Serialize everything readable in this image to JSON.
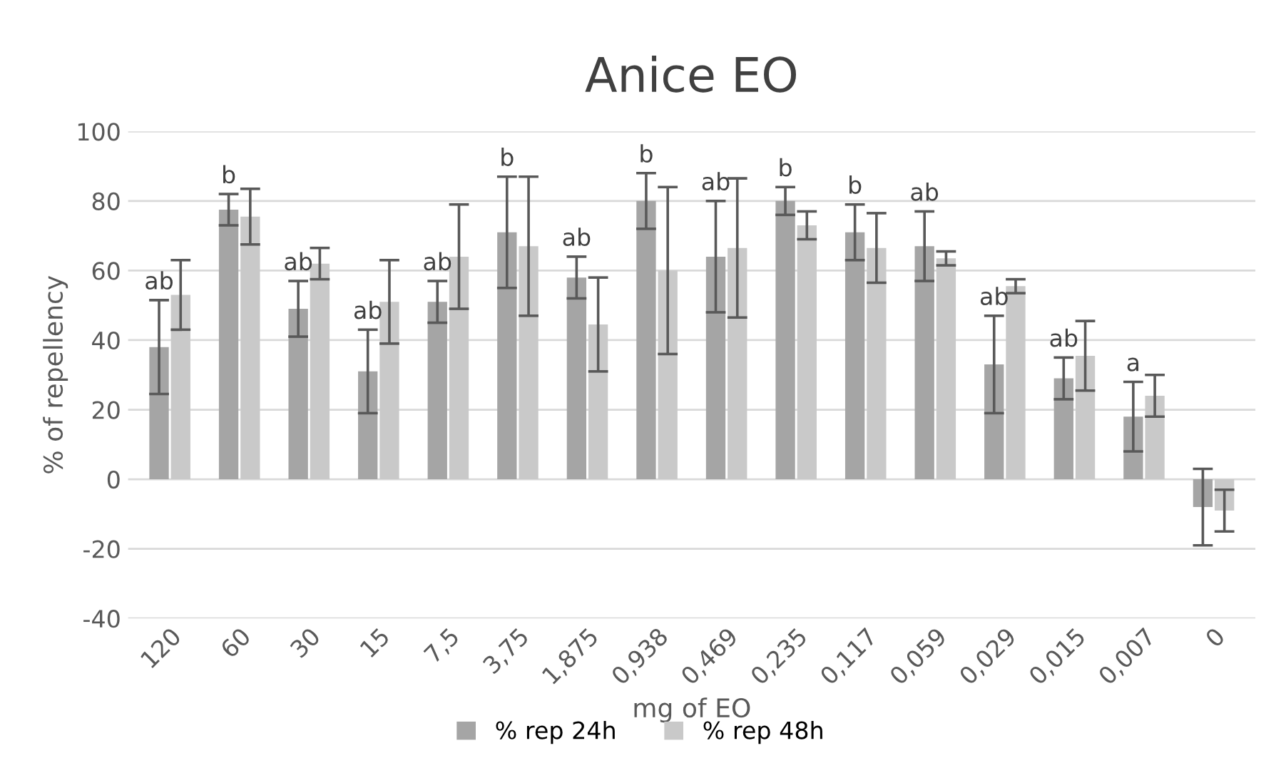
{
  "chart_data": {
    "type": "bar",
    "title": "Anice EO",
    "xlabel": "mg of EO",
    "ylabel": "% of repellency",
    "categories": [
      "120",
      "60",
      "30",
      "15",
      "7,5",
      "3,75",
      "1,875",
      "0,938",
      "0,469",
      "0,235",
      "0,117",
      "0,059",
      "0,029",
      "0,015",
      "0,007",
      "0"
    ],
    "series": [
      {
        "name": "% rep 24h",
        "color": "#a5a5a5",
        "values": [
          38,
          77.5,
          49,
          31,
          51,
          71,
          58,
          80,
          64,
          80,
          71,
          67,
          33,
          29,
          18,
          -8
        ],
        "errors": [
          13.5,
          4.5,
          8,
          12,
          6,
          16,
          6,
          8,
          16,
          4,
          8,
          10,
          14,
          6,
          10,
          11
        ]
      },
      {
        "name": "% rep 48h",
        "color": "#c9c9c9",
        "values": [
          53,
          75.5,
          62,
          51,
          64,
          67,
          44.5,
          60,
          66.5,
          73,
          66.5,
          63.5,
          55.5,
          35.5,
          24,
          -9
        ],
        "errors": [
          10,
          8,
          4.5,
          12,
          15,
          20,
          13.5,
          24,
          20,
          4,
          10,
          2,
          2,
          10,
          6,
          6
        ]
      }
    ],
    "annotations": [
      {
        "text": "ab",
        "x": "120",
        "y": 51.5
      },
      {
        "text": "b",
        "x": "60",
        "y": 82
      },
      {
        "text": "ab",
        "x": "30",
        "y": 57
      },
      {
        "text": "ab",
        "x": "15",
        "y": 43
      },
      {
        "text": "ab",
        "x": "7,5",
        "y": 57
      },
      {
        "text": "b",
        "x": "3,75",
        "y": 87
      },
      {
        "text": "ab",
        "x": "1,875",
        "y": 64
      },
      {
        "text": "b",
        "x": "0,938",
        "y": 88
      },
      {
        "text": "ab",
        "x": "0,469",
        "y": 80
      },
      {
        "text": "b",
        "x": "0,235",
        "y": 84
      },
      {
        "text": "b",
        "x": "0,117",
        "y": 79
      },
      {
        "text": "ab",
        "x": "0,059",
        "y": 77
      },
      {
        "text": "ab",
        "x": "0,029",
        "y": 47
      },
      {
        "text": "ab",
        "x": "0,015",
        "y": 35
      },
      {
        "text": "a",
        "x": "0,007",
        "y": 28
      }
    ],
    "ylim": [
      -40,
      100
    ],
    "yticks": [
      -40,
      -20,
      0,
      20,
      40,
      60,
      80,
      100
    ],
    "grid": "y",
    "legend": "bottom"
  }
}
